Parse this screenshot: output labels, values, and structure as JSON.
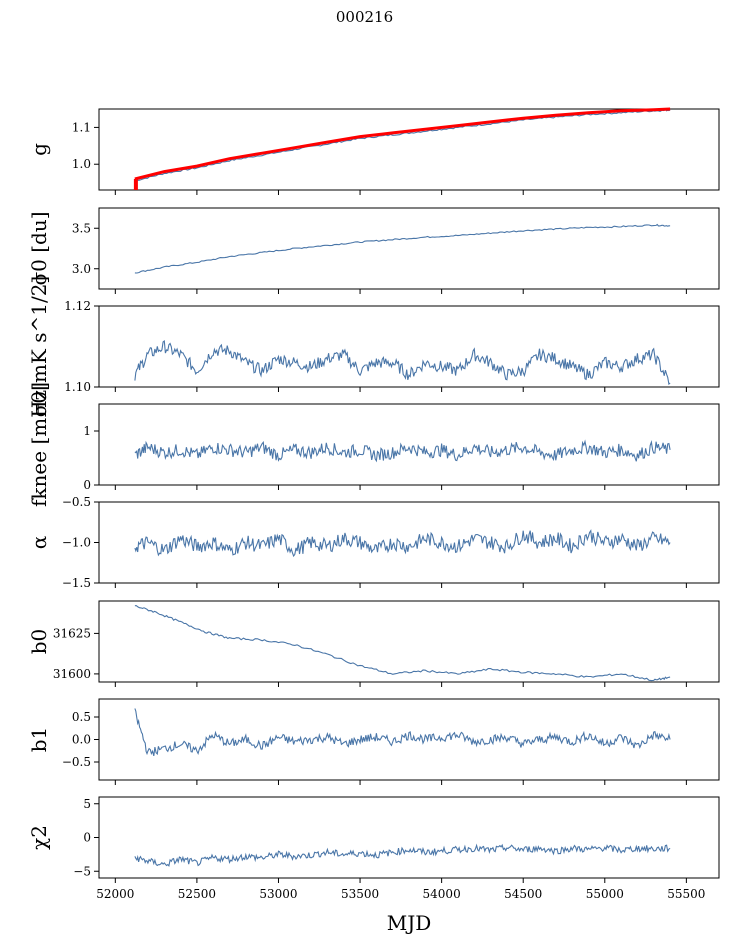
{
  "figure": {
    "title": "000216",
    "xlabel": "MJD"
  },
  "colors": {
    "series": "#4a76a8",
    "model": "#ff0000",
    "axes": "#000000"
  },
  "chart_data": [
    {
      "type": "line",
      "name": "g",
      "ylabel": "g",
      "ylim": [
        0.93,
        1.15
      ],
      "yticks": [
        1.0,
        1.1
      ],
      "ytick_labels": [
        "1.0",
        "1.1"
      ],
      "xlim": [
        51900,
        55700
      ],
      "grid": false,
      "x": [
        52120,
        52300,
        52500,
        52700,
        52900,
        53100,
        53300,
        53500,
        53700,
        53900,
        54100,
        54300,
        54500,
        54700,
        54900,
        55100,
        55300,
        55400
      ],
      "values": [
        0.955,
        0.975,
        0.99,
        1.01,
        1.025,
        1.04,
        1.055,
        1.07,
        1.08,
        1.09,
        1.1,
        1.11,
        1.12,
        1.128,
        1.135,
        1.14,
        1.145,
        1.147
      ],
      "overlay": {
        "color": "red",
        "values": [
          0.96,
          0.98,
          0.995,
          1.015,
          1.03,
          1.045,
          1.06,
          1.075,
          1.085,
          1.095,
          1.105,
          1.115,
          1.125,
          1.133,
          1.14,
          1.145,
          1.148,
          1.15
        ]
      }
    },
    {
      "type": "line",
      "name": "sigma0_du",
      "ylabel": "σ0 [du]",
      "ylim": [
        2.75,
        3.75
      ],
      "yticks": [
        3.0,
        3.5
      ],
      "ytick_labels": [
        "3.0",
        "3.5"
      ],
      "xlim": [
        51900,
        55700
      ],
      "grid": false,
      "x": [
        52120,
        52300,
        52500,
        52700,
        52900,
        53100,
        53300,
        53500,
        53700,
        53900,
        54100,
        54300,
        54500,
        54700,
        54900,
        55100,
        55300,
        55400
      ],
      "values": [
        2.95,
        3.02,
        3.08,
        3.15,
        3.2,
        3.25,
        3.29,
        3.33,
        3.36,
        3.39,
        3.41,
        3.44,
        3.47,
        3.49,
        3.51,
        3.52,
        3.54,
        3.53
      ]
    },
    {
      "type": "line",
      "name": "sigma0_mK",
      "ylabel": "σ0[mK s^1/2]",
      "ylim": [
        1.1,
        1.12
      ],
      "yticks": [
        1.1,
        1.12
      ],
      "ytick_labels": [
        "1.10",
        "1.12"
      ],
      "xlim": [
        51900,
        55700
      ],
      "grid": false,
      "x": [
        52120,
        52200,
        52300,
        52400,
        52500,
        52600,
        52700,
        52800,
        52900,
        53000,
        53100,
        53200,
        53300,
        53400,
        53500,
        53600,
        53700,
        53800,
        53900,
        54000,
        54100,
        54200,
        54300,
        54400,
        54500,
        54600,
        54700,
        54800,
        54900,
        55000,
        55100,
        55200,
        55300,
        55400
      ],
      "values": [
        1.103,
        1.108,
        1.11,
        1.108,
        1.104,
        1.109,
        1.109,
        1.106,
        1.104,
        1.107,
        1.106,
        1.105,
        1.107,
        1.108,
        1.104,
        1.106,
        1.106,
        1.103,
        1.106,
        1.105,
        1.104,
        1.108,
        1.106,
        1.103,
        1.104,
        1.108,
        1.107,
        1.105,
        1.103,
        1.106,
        1.105,
        1.107,
        1.108,
        1.101
      ]
    },
    {
      "type": "line",
      "name": "fknee",
      "ylabel": "fknee [mHz]",
      "ylim": [
        0,
        1.5
      ],
      "yticks": [
        0,
        1
      ],
      "ytick_labels": [
        "0",
        "1"
      ],
      "xlim": [
        51900,
        55700
      ],
      "grid": false,
      "x": [
        52120,
        52200,
        52300,
        52400,
        52500,
        52600,
        52700,
        52800,
        52900,
        53000,
        53100,
        53200,
        53300,
        53400,
        53500,
        53600,
        53700,
        53800,
        53900,
        54000,
        54100,
        54200,
        54300,
        54400,
        54500,
        54600,
        54700,
        54800,
        54900,
        55000,
        55100,
        55200,
        55300,
        55400
      ],
      "values": [
        0.55,
        0.7,
        0.6,
        0.65,
        0.55,
        0.7,
        0.65,
        0.6,
        0.7,
        0.55,
        0.65,
        0.6,
        0.7,
        0.6,
        0.65,
        0.55,
        0.6,
        0.7,
        0.6,
        0.65,
        0.55,
        0.7,
        0.6,
        0.65,
        0.7,
        0.6,
        0.55,
        0.65,
        0.7,
        0.6,
        0.65,
        0.55,
        0.7,
        0.65
      ]
    },
    {
      "type": "line",
      "name": "alpha",
      "ylabel": "α",
      "ylim": [
        -1.5,
        -0.5
      ],
      "yticks": [
        -1.5,
        -1.0,
        -0.5
      ],
      "ytick_labels": [
        "−1.5",
        "−1.0",
        "−0.5"
      ],
      "xlim": [
        51900,
        55700
      ],
      "grid": false,
      "x": [
        52120,
        52200,
        52300,
        52400,
        52500,
        52600,
        52700,
        52800,
        52900,
        53000,
        53100,
        53200,
        53300,
        53400,
        53500,
        53600,
        53700,
        53800,
        53900,
        54000,
        54100,
        54200,
        54300,
        54400,
        54500,
        54600,
        54700,
        54800,
        54900,
        55000,
        55100,
        55200,
        55300,
        55400
      ],
      "values": [
        -1.05,
        -1.0,
        -1.1,
        -0.95,
        -1.05,
        -1.0,
        -1.1,
        -1.0,
        -1.05,
        -0.95,
        -1.1,
        -1.0,
        -1.05,
        -0.95,
        -1.0,
        -1.1,
        -1.0,
        -1.05,
        -0.95,
        -1.0,
        -1.05,
        -0.95,
        -1.0,
        -1.05,
        -0.9,
        -1.0,
        -0.95,
        -1.05,
        -0.9,
        -1.0,
        -0.95,
        -1.05,
        -0.95,
        -1.0
      ]
    },
    {
      "type": "line",
      "name": "b0",
      "ylabel": "b0",
      "ylim": [
        31595,
        31645
      ],
      "yticks": [
        31600,
        31625
      ],
      "ytick_labels": [
        "31600",
        "31625"
      ],
      "xlim": [
        51900,
        55700
      ],
      "grid": false,
      "x": [
        52120,
        52250,
        52400,
        52550,
        52700,
        52900,
        53100,
        53300,
        53500,
        53700,
        53900,
        54100,
        54300,
        54500,
        54700,
        54900,
        55100,
        55300,
        55400
      ],
      "values": [
        31642,
        31638,
        31632,
        31626,
        31622,
        31621,
        31618,
        31612,
        31605,
        31600,
        31602,
        31600,
        31603,
        31601,
        31600,
        31598,
        31600,
        31596,
        31598
      ]
    },
    {
      "type": "line",
      "name": "b1",
      "ylabel": "b1",
      "ylim": [
        -0.9,
        0.9
      ],
      "yticks": [
        -0.5,
        0.0,
        0.5
      ],
      "ytick_labels": [
        "−0.5",
        "0.0",
        "0.5"
      ],
      "xlim": [
        51900,
        55700
      ],
      "grid": false,
      "x": [
        52120,
        52200,
        52300,
        52400,
        52500,
        52600,
        52700,
        52800,
        52900,
        53000,
        53100,
        53200,
        53300,
        53400,
        53500,
        53600,
        53700,
        53800,
        53900,
        54000,
        54100,
        54200,
        54300,
        54400,
        54500,
        54600,
        54700,
        54800,
        54900,
        55000,
        55100,
        55200,
        55300,
        55400
      ],
      "values": [
        0.6,
        -0.3,
        -0.2,
        -0.1,
        -0.25,
        0.1,
        -0.1,
        0.0,
        -0.15,
        0.05,
        -0.05,
        0.0,
        0.05,
        -0.1,
        0.0,
        0.05,
        -0.05,
        0.1,
        0.0,
        0.05,
        0.1,
        -0.05,
        0.0,
        0.05,
        -0.1,
        0.0,
        0.05,
        -0.05,
        0.1,
        -0.1,
        0.05,
        -0.15,
        0.1,
        0.0
      ]
    },
    {
      "type": "line",
      "name": "chi2",
      "ylabel": "χ2",
      "ylim": [
        -6,
        6
      ],
      "yticks": [
        -5,
        0,
        5
      ],
      "ytick_labels": [
        "−5",
        "0",
        "5"
      ],
      "xlim": [
        51900,
        55700
      ],
      "grid": false,
      "x": [
        52120,
        52200,
        52300,
        52400,
        52500,
        52600,
        52700,
        52800,
        52900,
        53000,
        53100,
        53200,
        53300,
        53400,
        53500,
        53600,
        53700,
        53800,
        53900,
        54000,
        54100,
        54200,
        54300,
        54400,
        54500,
        54600,
        54700,
        54800,
        54900,
        55000,
        55100,
        55200,
        55300,
        55400
      ],
      "values": [
        -3,
        -3.5,
        -4,
        -3.2,
        -3.8,
        -3,
        -3.2,
        -2.8,
        -3,
        -2.5,
        -2.8,
        -2.6,
        -2.2,
        -2.5,
        -2.3,
        -2.6,
        -2.2,
        -1.8,
        -2.2,
        -2,
        -1.8,
        -1.6,
        -1.9,
        -1.5,
        -1.8,
        -1.6,
        -2,
        -1.6,
        -1.8,
        -1.5,
        -1.9,
        -1.6,
        -1.7,
        -1.6
      ]
    }
  ],
  "xaxis": {
    "ticks": [
      52000,
      52500,
      53000,
      53500,
      54000,
      54500,
      55000,
      55500
    ],
    "tick_labels": [
      "52000",
      "52500",
      "53000",
      "53500",
      "54000",
      "54500",
      "55000",
      "55500"
    ]
  }
}
